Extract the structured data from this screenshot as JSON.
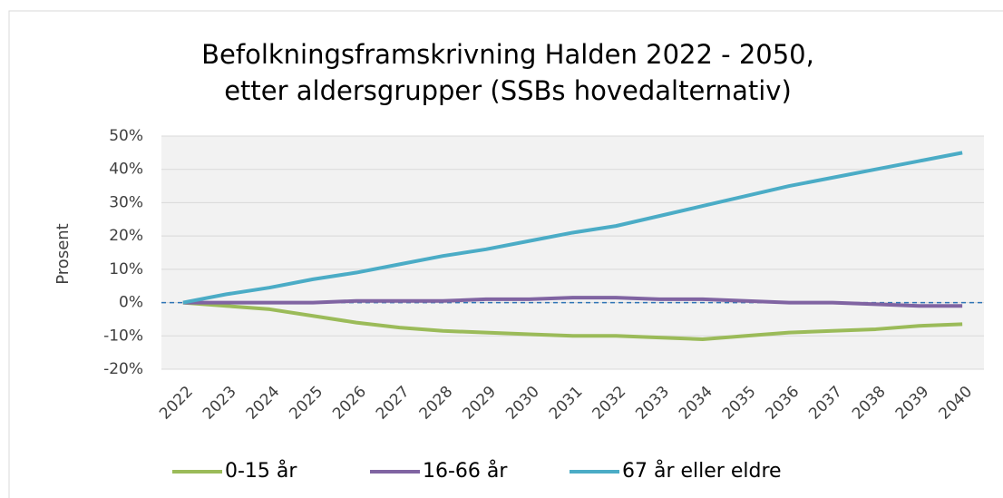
{
  "chart_data": {
    "type": "line",
    "title": [
      "Befolkningsframskrivning Halden 2022 - 2050,",
      "etter aldersgrupper (SSBs hovedalternativ)"
    ],
    "y_label": "Prosent",
    "categories": [
      "2022",
      "2023",
      "2024",
      "2025",
      "2026",
      "2027",
      "2028",
      "2029",
      "2030",
      "2031",
      "2032",
      "2033",
      "2034",
      "2035",
      "2036",
      "2037",
      "2038",
      "2039",
      "2040"
    ],
    "series": [
      {
        "name": "0-15 år",
        "color": "#9bbb59",
        "values": [
          0,
          -1,
          -2,
          -4,
          -6,
          -7.5,
          -8.5,
          -9,
          -9.5,
          -10,
          -10,
          -10.5,
          -11,
          -10,
          -9,
          -8.5,
          -8,
          -7,
          -6.5
        ]
      },
      {
        "name": "16-66 år",
        "color": "#8064a2",
        "values": [
          0,
          0,
          0,
          0,
          0.5,
          0.5,
          0.5,
          1,
          1,
          1.5,
          1.5,
          1,
          1,
          0.5,
          0,
          0,
          -0.5,
          -1,
          -1
        ]
      },
      {
        "name": "67 år eller eldre",
        "color": "#4bacc6",
        "values": [
          0,
          2.5,
          4.5,
          7,
          9,
          11.5,
          14,
          16,
          18.5,
          21,
          23,
          26,
          29,
          32,
          35,
          37.5,
          40,
          42.5,
          45
        ]
      }
    ],
    "ylim": [
      -20,
      50
    ],
    "yticks": [
      {
        "value": -20,
        "label": "-20%"
      },
      {
        "value": -10,
        "label": "-10%"
      },
      {
        "value": 0,
        "label": "0%"
      },
      {
        "value": 10,
        "label": "10%"
      },
      {
        "value": 20,
        "label": "20%"
      },
      {
        "value": 30,
        "label": "30%"
      },
      {
        "value": 40,
        "label": "40%"
      },
      {
        "value": 50,
        "label": "50%"
      }
    ],
    "grid": true,
    "reference_line": 0,
    "legend": "bottom"
  }
}
